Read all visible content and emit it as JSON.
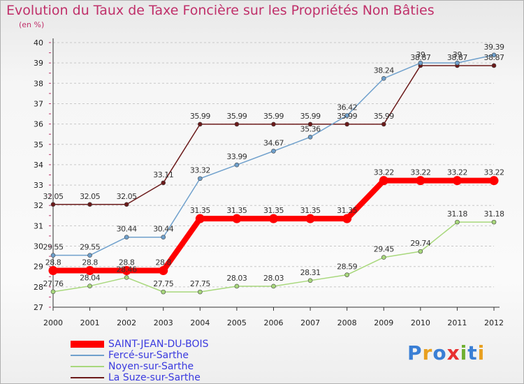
{
  "header": {
    "title": "Evolution du Taux de Taxe Foncière sur les Propriétés Non Bâties",
    "unit": "(en %)"
  },
  "logo": {
    "text": "Proxiti",
    "colors": [
      "#3a7fd5",
      "#e8a020",
      "#3a7fd5",
      "#e83030",
      "#70b030",
      "#3a7fd5",
      "#e8a020"
    ]
  },
  "chart_data": {
    "type": "line",
    "title": "Evolution du Taux de Taxe Foncière sur les Propriétés Non Bâties",
    "ylabel": "(en %)",
    "xlabel": "",
    "ylim": [
      27,
      40
    ],
    "yticks": [
      27,
      28,
      29,
      30,
      31,
      32,
      33,
      34,
      35,
      36,
      37,
      38,
      39,
      40
    ],
    "x": [
      "2000",
      "2001",
      "2002",
      "2003",
      "2004",
      "2005",
      "2006",
      "2007",
      "2008",
      "2009",
      "2010",
      "2011",
      "2012"
    ],
    "grid": "horizontal dashed",
    "legend": "bottom-left",
    "series": [
      {
        "name": "La Suze-sur-Sarthe",
        "color": "#6b1a1a",
        "values": [
          32.05,
          32.05,
          32.05,
          33.11,
          35.99,
          35.99,
          35.99,
          35.99,
          35.99,
          35.99,
          38.87,
          38.87,
          38.87
        ],
        "labels": [
          "32.05",
          "32.05",
          "32.05",
          "33.11",
          "35.99",
          "35.99",
          "35.99",
          "35.99",
          "35.99",
          "35.99",
          "38.87",
          "38.87",
          "38.87"
        ]
      },
      {
        "name": "Fercé-sur-Sarthe",
        "color": "#6fa0cc",
        "values": [
          29.55,
          29.55,
          30.44,
          30.44,
          33.32,
          33.99,
          34.67,
          35.36,
          36.42,
          38.24,
          39,
          39,
          39.39
        ],
        "labels": [
          "29.55",
          "29.55",
          "30.44",
          "30.44",
          "33.32",
          "33.99",
          "34.67",
          "35.36",
          "36.42",
          "38.24",
          "39",
          "39",
          "39.39"
        ]
      },
      {
        "name": "Noyen-sur-Sarthe",
        "color": "#a8d87c",
        "values": [
          27.76,
          28.04,
          28.46,
          27.75,
          27.75,
          28.03,
          28.03,
          28.31,
          28.59,
          29.45,
          29.74,
          31.18,
          31.18
        ],
        "labels": [
          "27.76",
          "28.04",
          "28.46",
          "27.75",
          "27.75",
          "28.03",
          "28.03",
          "28.31",
          "28.59",
          "29.45",
          "29.74",
          "31.18",
          "31.18"
        ]
      },
      {
        "name": "SAINT-JEAN-DU-BOIS",
        "color": "#ff0000",
        "values": [
          28.8,
          28.8,
          28.8,
          28.8,
          31.35,
          31.35,
          31.35,
          31.35,
          31.35,
          33.22,
          33.22,
          33.22,
          33.22
        ],
        "labels": [
          "28.8",
          "28.8",
          "28.8",
          "28.8",
          "31.35",
          "31.35",
          "31.35",
          "31.35",
          "31.35",
          "33.22",
          "33.22",
          "33.22",
          "33.22"
        ]
      }
    ],
    "legend_order": [
      "SAINT-JEAN-DU-BOIS",
      "Fercé-sur-Sarthe",
      "Noyen-sur-Sarthe",
      "La Suze-sur-Sarthe"
    ]
  }
}
